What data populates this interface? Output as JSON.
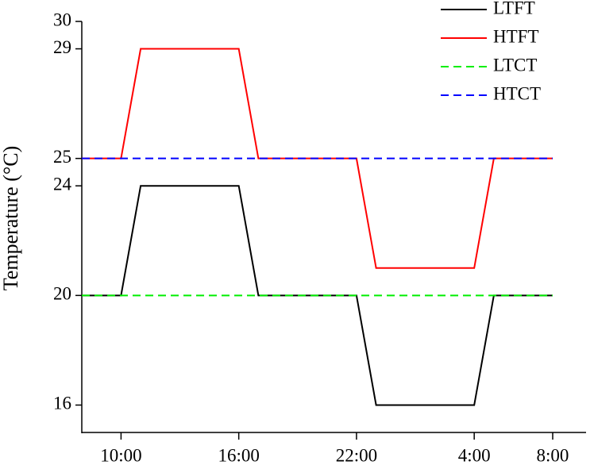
{
  "chart_data": {
    "type": "line",
    "ylabel": "Temperature (°C)",
    "x": [
      8,
      10,
      11,
      16,
      17,
      22,
      23,
      28,
      29,
      32
    ],
    "series": [
      {
        "name": "LTFT",
        "color": "#000000",
        "linestyle": "solid",
        "values": [
          20,
          20,
          24,
          24,
          20,
          20,
          16,
          16,
          20,
          20
        ]
      },
      {
        "name": "HTFT",
        "color": "#ff0000",
        "linestyle": "solid",
        "values": [
          25,
          25,
          29,
          29,
          25,
          25,
          21,
          21,
          25,
          25
        ]
      },
      {
        "name": "LTCT",
        "color": "#00ee00",
        "linestyle": "dashed",
        "values": [
          20,
          20,
          20,
          20,
          20,
          20,
          20,
          20,
          20,
          20
        ]
      },
      {
        "name": "HTCT",
        "color": "#0000ff",
        "linestyle": "dashed",
        "values": [
          25,
          25,
          25,
          25,
          25,
          25,
          25,
          25,
          25,
          25
        ]
      }
    ],
    "xlim": [
      8,
      33.7
    ],
    "xticks": [
      {
        "value": 10,
        "label": "10:00"
      },
      {
        "value": 16,
        "label": "16:00"
      },
      {
        "value": 22,
        "label": "22:00"
      },
      {
        "value": 28,
        "label": "4:00"
      },
      {
        "value": 32,
        "label": "8:00"
      }
    ],
    "ylim": [
      15,
      30
    ],
    "yticks": [
      16,
      20,
      24,
      25,
      29,
      30
    ],
    "legend": "upper right"
  }
}
